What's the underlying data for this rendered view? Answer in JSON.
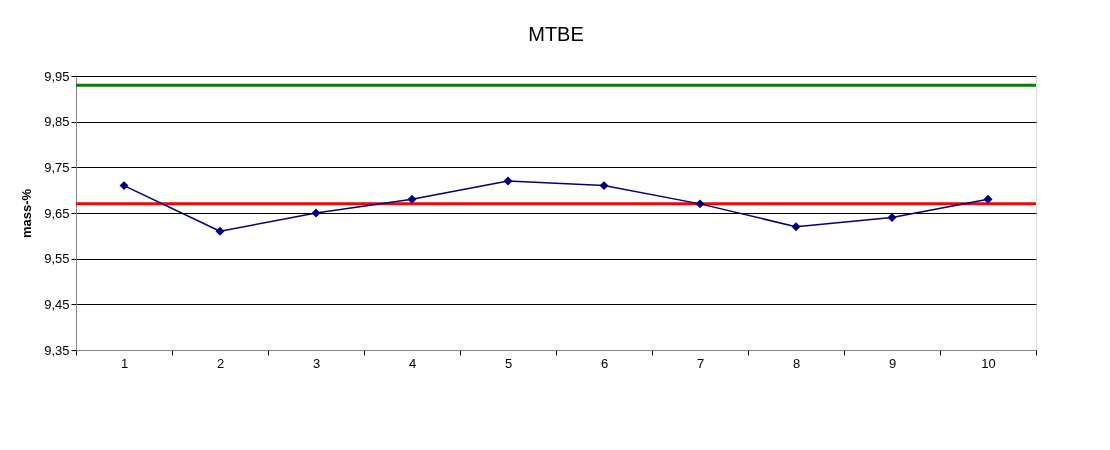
{
  "chart_data": {
    "type": "line",
    "title": "MTBE",
    "ylabel": "mass-%",
    "categories": [
      "1",
      "2",
      "3",
      "4",
      "5",
      "6",
      "7",
      "8",
      "9",
      "10"
    ],
    "series": [
      {
        "color": "#000080",
        "values": [
          9.71,
          9.61,
          9.65,
          9.68,
          9.72,
          9.71,
          9.67,
          9.62,
          9.64,
          9.68
        ]
      }
    ],
    "ylim": [
      9.35,
      9.95
    ],
    "yticks": [
      {
        "value": 9.35,
        "label": "9,35"
      },
      {
        "value": 9.45,
        "label": "9,45"
      },
      {
        "value": 9.55,
        "label": "9,55"
      },
      {
        "value": 9.65,
        "label": "9,65"
      },
      {
        "value": 9.75,
        "label": "9,75"
      },
      {
        "value": 9.85,
        "label": "9,85"
      },
      {
        "value": 9.95,
        "label": "9,95"
      }
    ],
    "ref_lines": [
      {
        "axis": "y",
        "value": 9.93,
        "color": "#008000"
      },
      {
        "axis": "y",
        "value": 9.67,
        "color": "#ff0000"
      }
    ],
    "grid": "y",
    "marker": "diamond",
    "line_style": "solid"
  }
}
